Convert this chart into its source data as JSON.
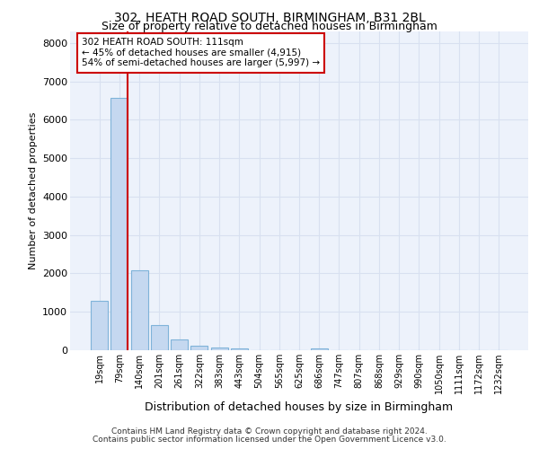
{
  "title1": "302, HEATH ROAD SOUTH, BIRMINGHAM, B31 2BL",
  "title2": "Size of property relative to detached houses in Birmingham",
  "xlabel": "Distribution of detached houses by size in Birmingham",
  "ylabel": "Number of detached properties",
  "bin_labels": [
    "19sqm",
    "79sqm",
    "140sqm",
    "201sqm",
    "261sqm",
    "322sqm",
    "383sqm",
    "443sqm",
    "504sqm",
    "565sqm",
    "625sqm",
    "686sqm",
    "747sqm",
    "807sqm",
    "868sqm",
    "929sqm",
    "990sqm",
    "1050sqm",
    "1111sqm",
    "1172sqm",
    "1232sqm"
  ],
  "bar_values": [
    1280,
    6580,
    2080,
    650,
    270,
    120,
    70,
    50,
    0,
    0,
    0,
    50,
    0,
    0,
    0,
    0,
    0,
    0,
    0,
    0,
    0
  ],
  "bar_color": "#c5d8f0",
  "bar_edge_color": "#7fb3d9",
  "vline_color": "#cc0000",
  "vline_pos": 1.42,
  "ylim": [
    0,
    8300
  ],
  "yticks": [
    0,
    1000,
    2000,
    3000,
    4000,
    5000,
    6000,
    7000,
    8000
  ],
  "annotation_text": "302 HEATH ROAD SOUTH: 111sqm\n← 45% of detached houses are smaller (4,915)\n54% of semi-detached houses are larger (5,997) →",
  "annotation_box_facecolor": "#ffffff",
  "annotation_box_edgecolor": "#cc0000",
  "footer1": "Contains HM Land Registry data © Crown copyright and database right 2024.",
  "footer2": "Contains public sector information licensed under the Open Government Licence v3.0.",
  "bg_color": "#edf2fb",
  "grid_color": "#d8e0f0",
  "title1_fontsize": 10,
  "title2_fontsize": 9
}
